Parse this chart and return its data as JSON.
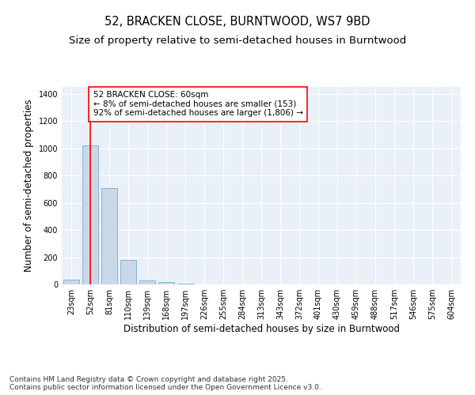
{
  "title": "52, BRACKEN CLOSE, BURNTWOOD, WS7 9BD",
  "subtitle": "Size of property relative to semi-detached houses in Burntwood",
  "xlabel": "Distribution of semi-detached houses by size in Burntwood",
  "ylabel": "Number of semi-detached properties",
  "categories": [
    "23sqm",
    "52sqm",
    "81sqm",
    "110sqm",
    "139sqm",
    "168sqm",
    "197sqm",
    "226sqm",
    "255sqm",
    "284sqm",
    "313sqm",
    "343sqm",
    "372sqm",
    "401sqm",
    "430sqm",
    "459sqm",
    "488sqm",
    "517sqm",
    "546sqm",
    "575sqm",
    "604sqm"
  ],
  "values": [
    35,
    1020,
    710,
    180,
    30,
    20,
    5,
    0,
    0,
    0,
    0,
    0,
    0,
    0,
    0,
    0,
    0,
    0,
    0,
    0,
    0
  ],
  "bar_color": "#c8d8e8",
  "bar_edge_color": "#7aabcc",
  "red_line_index": 1,
  "annotation_text": "52 BRACKEN CLOSE: 60sqm\n← 8% of semi-detached houses are smaller (153)\n92% of semi-detached houses are larger (1,806) →",
  "ylim": [
    0,
    1450
  ],
  "yticks": [
    0,
    200,
    400,
    600,
    800,
    1000,
    1200,
    1400
  ],
  "background_color": "#eaf0f8",
  "plot_background": "#eaf0f8",
  "footer_text": "Contains HM Land Registry data © Crown copyright and database right 2025.\nContains public sector information licensed under the Open Government Licence v3.0.",
  "title_fontsize": 10.5,
  "subtitle_fontsize": 9.5,
  "axis_label_fontsize": 8.5,
  "tick_fontsize": 7,
  "annotation_fontsize": 7.5,
  "footer_fontsize": 6.5
}
